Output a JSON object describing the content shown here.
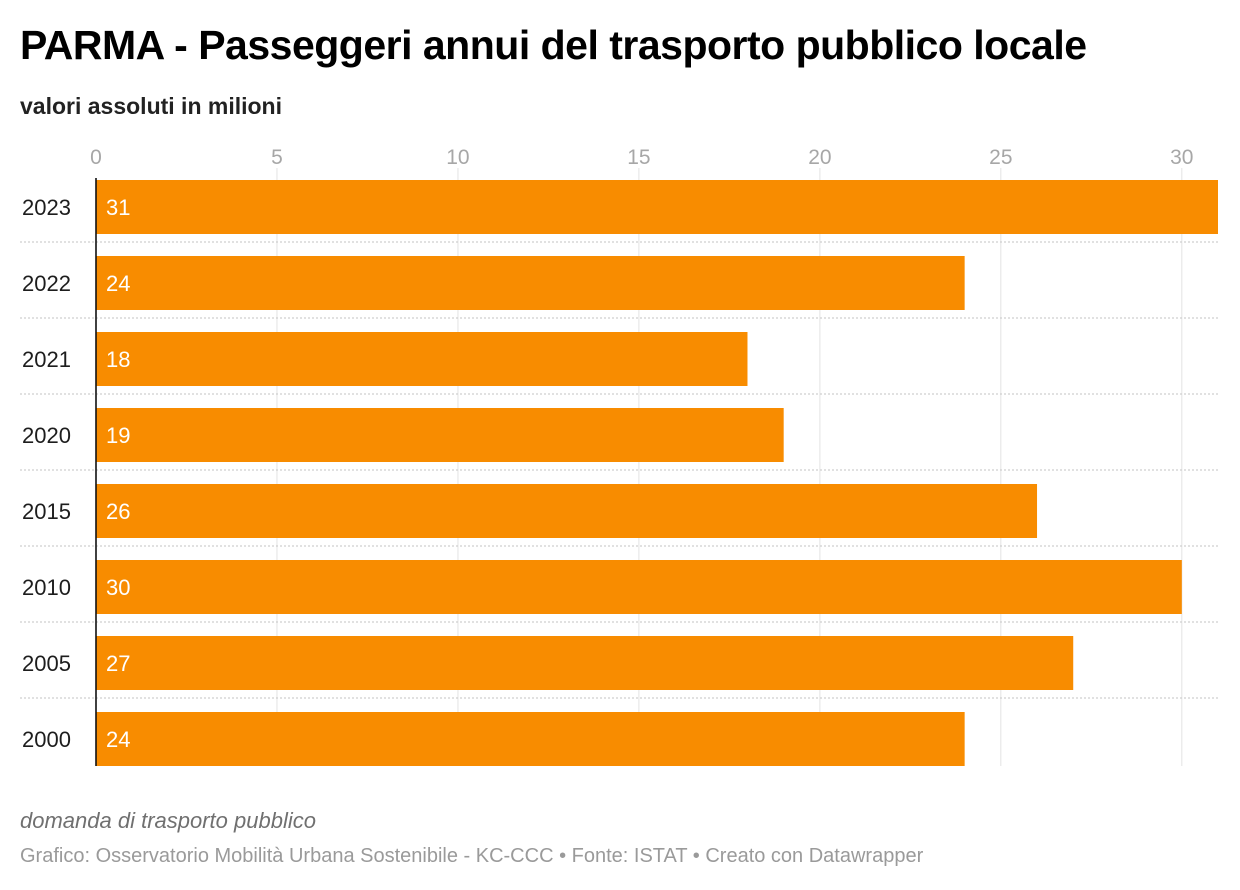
{
  "chart_data": {
    "type": "bar",
    "orientation": "horizontal",
    "title": "PARMA - Passeggeri annui del trasporto pubblico locale",
    "subtitle": "valori assoluti in milioni",
    "categories": [
      "2023",
      "2022",
      "2021",
      "2020",
      "2015",
      "2010",
      "2005",
      "2000"
    ],
    "values": [
      31,
      24,
      18,
      19,
      26,
      30,
      27,
      24
    ],
    "value_labels": [
      "31",
      "24",
      "18",
      "19",
      "26",
      "30",
      "27",
      "24"
    ],
    "x_ticks": [
      0,
      5,
      10,
      15,
      20,
      25,
      30
    ],
    "x_tick_labels": [
      "0",
      "5",
      "10",
      "15",
      "20",
      "25",
      "30"
    ],
    "xlim": [
      0,
      31
    ],
    "xaxis_position": "top",
    "grid": true,
    "bar_color": "#f88c00",
    "notes": "domanda di trasporto pubblico",
    "footer": "Grafico: Osservatorio Mobilità Urbana Sostenibile - KC-CCC • Fonte: ISTAT • Creato con Datawrapper"
  }
}
